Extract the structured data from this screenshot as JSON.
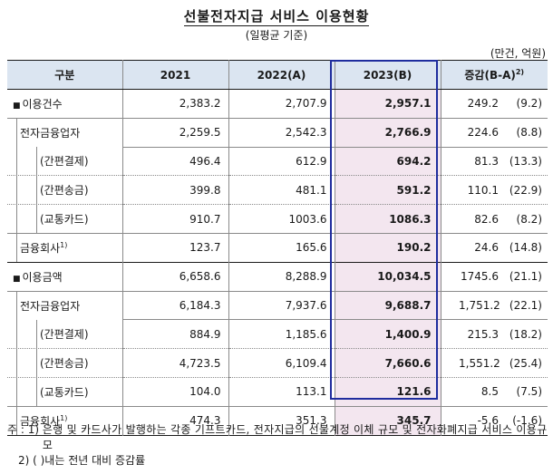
{
  "title": "선불전자지급 서비스 이용현황",
  "subtitle": "(일평균 기준)",
  "unit": "(만건, 억원)",
  "header": {
    "category": "구분",
    "y2021": "2021",
    "y2022": "2022(A)",
    "y2023": "2023(B)",
    "change": "증감(B-A)",
    "change_sup": "2)"
  },
  "rows": [
    {
      "label": "이용건수",
      "bullet": "■",
      "y2021": "2,383.2",
      "y2022": "2,707.9",
      "y2023": "2,957.1",
      "diff": "249.2",
      "pct": "(9.2)"
    },
    {
      "label": "전자금융업자",
      "y2021": "2,259.5",
      "y2022": "2,542.3",
      "y2023": "2,766.9",
      "diff": "224.6",
      "pct": "(8.8)"
    },
    {
      "label": "(간편결제)",
      "y2021": "496.4",
      "y2022": "612.9",
      "y2023": "694.2",
      "diff": "81.3",
      "pct": "(13.3)"
    },
    {
      "label": "(간편송금)",
      "y2021": "399.8",
      "y2022": "481.1",
      "y2023": "591.2",
      "diff": "110.1",
      "pct": "(22.9)"
    },
    {
      "label": "(교통카드)",
      "y2021": "910.7",
      "y2022": "1003.6",
      "y2023": "1086.3",
      "diff": "82.6",
      "pct": "(8.2)"
    },
    {
      "label": "금융회사",
      "sup": "1)",
      "y2021": "123.7",
      "y2022": "165.6",
      "y2023": "190.2",
      "diff": "24.6",
      "pct": "(14.8)"
    },
    {
      "label": "이용금액",
      "bullet": "■",
      "y2021": "6,658.6",
      "y2022": "8,288.9",
      "y2023": "10,034.5",
      "diff": "1745.6",
      "pct": "(21.1)"
    },
    {
      "label": "전자금융업자",
      "y2021": "6,184.3",
      "y2022": "7,937.6",
      "y2023": "9,688.7",
      "diff": "1,751.2",
      "pct": "(22.1)"
    },
    {
      "label": "(간편결제)",
      "y2021": "884.9",
      "y2022": "1,185.6",
      "y2023": "1,400.9",
      "diff": "215.3",
      "pct": "(18.2)"
    },
    {
      "label": "(간편송금)",
      "y2021": "4,723.5",
      "y2022": "6,109.4",
      "y2023": "7,660.6",
      "diff": "1,551.2",
      "pct": "(25.4)"
    },
    {
      "label": "(교통카드)",
      "y2021": "104.0",
      "y2022": "113.1",
      "y2023": "121.6",
      "diff": "8.5",
      "pct": "(7.5)"
    },
    {
      "label": "금융회사",
      "sup": "1)",
      "y2021": "474.3",
      "y2022": "351.3",
      "y2023": "345.7",
      "diff": "-5.6",
      "pct": "(-1.6)"
    }
  ],
  "notes": {
    "n1_label": "주 : 1) ",
    "n1_text": "은행 및 카드사가 발행하는 각종 기프트카드, 전자지급의 선불계정 이체 규모 및 전자화폐지급 서비스 이용규모",
    "n2": "2) (  )내는 전년 대비 증감률"
  }
}
